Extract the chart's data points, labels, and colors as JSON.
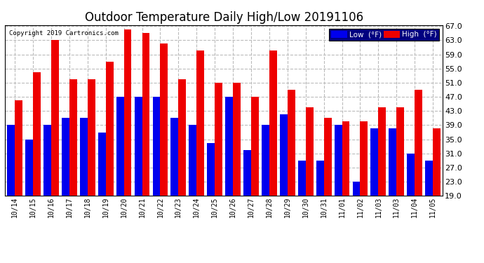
{
  "title": "Outdoor Temperature Daily High/Low 20191106",
  "copyright": "Copyright 2019 Cartronics.com",
  "categories": [
    "10/14",
    "10/15",
    "10/16",
    "10/17",
    "10/18",
    "10/19",
    "10/20",
    "10/21",
    "10/22",
    "10/23",
    "10/24",
    "10/25",
    "10/26",
    "10/27",
    "10/28",
    "10/29",
    "10/30",
    "10/31",
    "11/01",
    "11/02",
    "11/03",
    "11/03",
    "11/04",
    "11/05"
  ],
  "low_values": [
    39,
    35,
    39,
    41,
    41,
    37,
    47,
    47,
    47,
    41,
    39,
    34,
    47,
    32,
    39,
    42,
    29,
    29,
    39,
    23,
    38,
    38,
    31,
    29
  ],
  "high_values": [
    46,
    54,
    63,
    52,
    52,
    57,
    66,
    65,
    62,
    52,
    60,
    51,
    51,
    47,
    60,
    49,
    44,
    41,
    40,
    40,
    44,
    44,
    49,
    38
  ],
  "ylim_min": 19.0,
  "ylim_max": 67.0,
  "yticks": [
    19.0,
    23.0,
    27.0,
    31.0,
    35.0,
    39.0,
    43.0,
    47.0,
    51.0,
    55.0,
    59.0,
    63.0,
    67.0
  ],
  "low_color": "#0000ee",
  "high_color": "#ee0000",
  "bg_color": "#ffffff",
  "plot_bg_color": "#ffffff",
  "grid_color": "#bbbbbb",
  "title_fontsize": 12,
  "bar_width": 0.42
}
